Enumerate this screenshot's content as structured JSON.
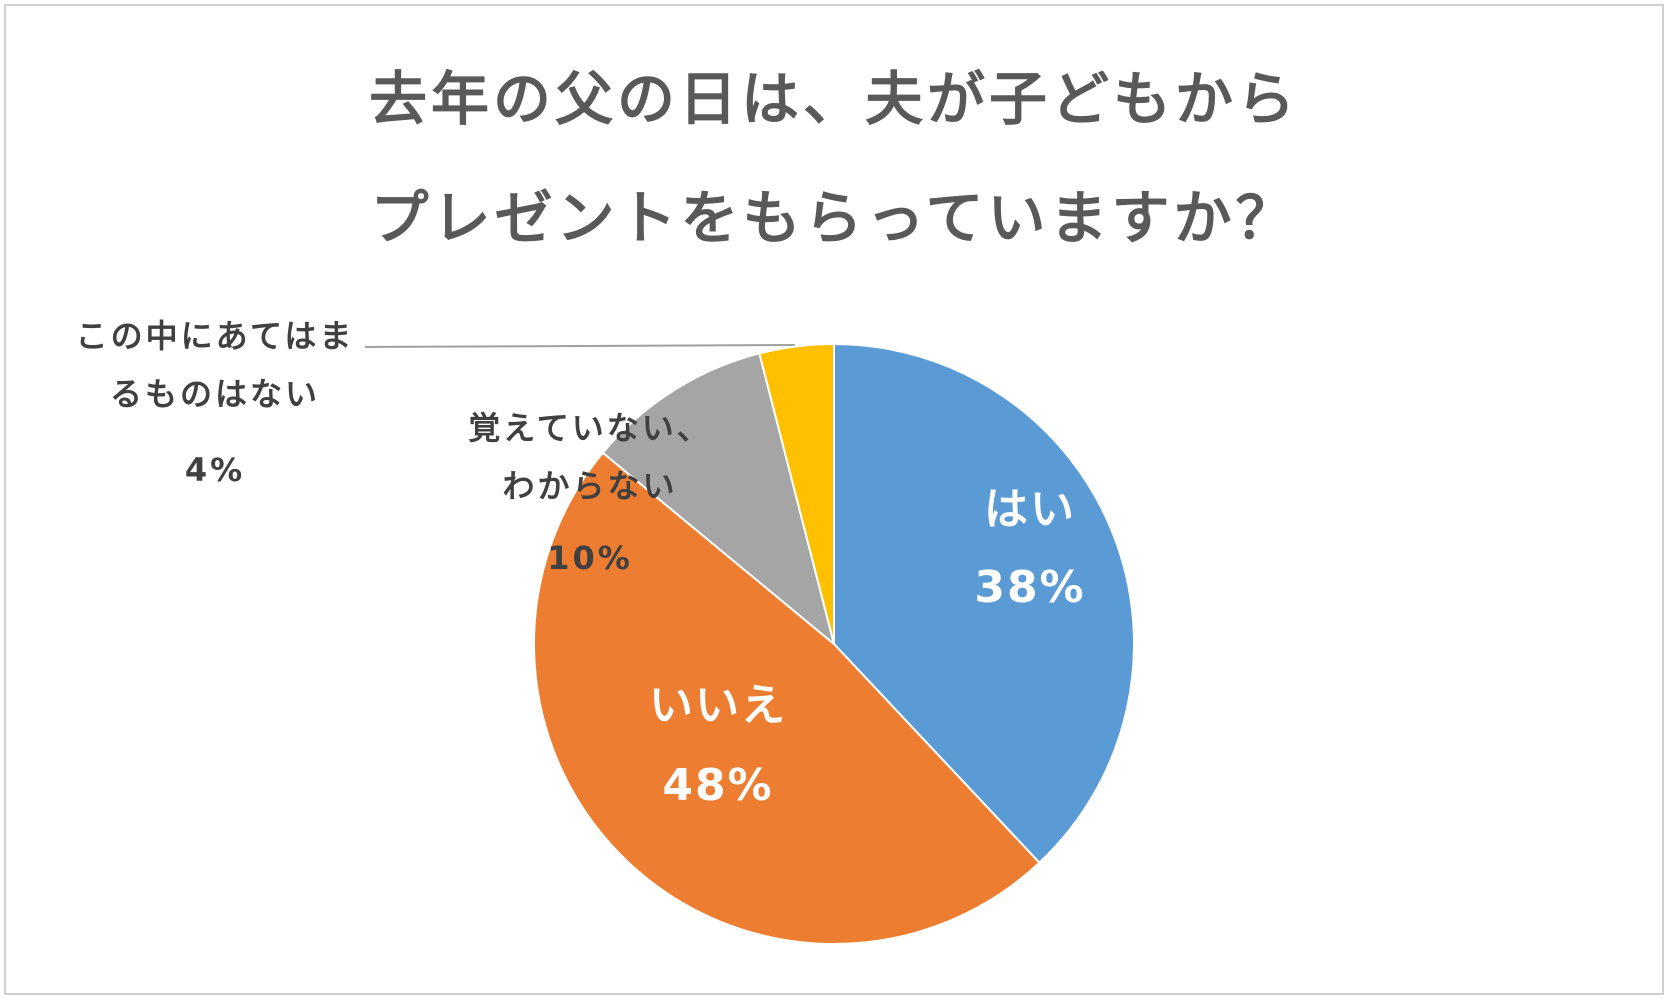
{
  "chart_data": {
    "type": "pie",
    "title": [
      "去年の父の日は、夫が子どもから",
      "プレゼントをもらっていますか？"
    ],
    "categories": [
      "はい",
      "いいえ",
      "覚えていない、わからない",
      "この中にあてはまるものはない"
    ],
    "values": [
      38,
      48,
      10,
      4
    ],
    "value_labels": [
      "38%",
      "48%",
      "10%",
      "4%"
    ],
    "colors": [
      "#5b9bd5",
      "#ed7d31",
      "#a5a5a5",
      "#ffc000"
    ]
  }
}
